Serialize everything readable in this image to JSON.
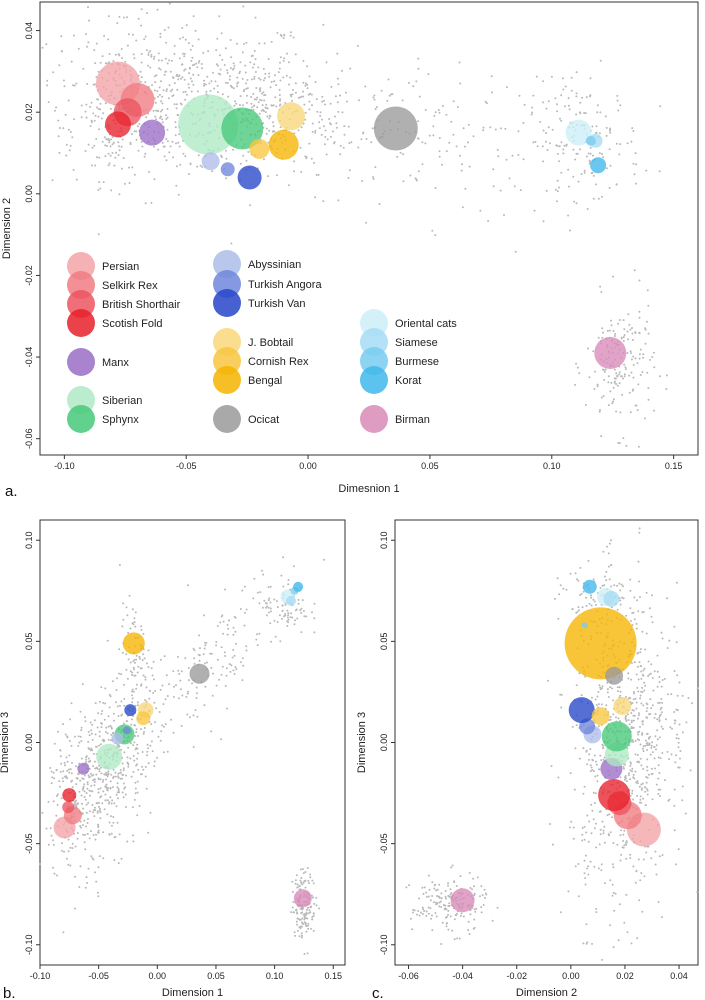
{
  "breeds": [
    {
      "name": "Persian",
      "color": "#f4a3a8"
    },
    {
      "name": "Selkirk Rex",
      "color": "#f07c82"
    },
    {
      "name": "British Shorthair",
      "color": "#ec5560"
    },
    {
      "name": "Scotish Fold",
      "color": "#e8202a"
    },
    {
      "name": "Manx",
      "color": "#9b6dc6"
    },
    {
      "name": "Siberian",
      "color": "#aee9c4"
    },
    {
      "name": "Sphynx",
      "color": "#46c97a"
    },
    {
      "name": "Abyssinian",
      "color": "#aebde9"
    },
    {
      "name": "Turkish Angora",
      "color": "#6f87dc"
    },
    {
      "name": "Turkish Van",
      "color": "#2746c8"
    },
    {
      "name": "J. Bobtail",
      "color": "#f9d77a"
    },
    {
      "name": "Cornish Rex",
      "color": "#f8c640"
    },
    {
      "name": "Bengal",
      "color": "#f6b400"
    },
    {
      "name": "Ocicat",
      "color": "#9a9a9a"
    },
    {
      "name": "Oriental cats",
      "color": "#cdeef9"
    },
    {
      "name": "Siamese",
      "color": "#a6ddf4"
    },
    {
      "name": "Burmese",
      "color": "#78cdf0"
    },
    {
      "name": "Korat",
      "color": "#40b8ec"
    },
    {
      "name": "Birman",
      "color": "#d88bb8"
    }
  ],
  "chart_data": [
    {
      "panel": "a.",
      "type": "scatter",
      "xlabel": "Dimesnion 1",
      "ylabel": "Dimension 2",
      "xlim": [
        -0.11,
        0.16
      ],
      "ylim": [
        -0.064,
        0.047
      ],
      "xticks": [
        "-0.10",
        "-0.05",
        "0.00",
        "0.05",
        "0.10",
        "0.15"
      ],
      "yticks": [
        "-0.06",
        "-0.04",
        "-0.02",
        "0.00",
        "0.02",
        "0.04"
      ],
      "series": [
        {
          "name": "Persian",
          "x": -0.078,
          "y": 0.027,
          "size": 22
        },
        {
          "name": "Selkirk Rex",
          "x": -0.07,
          "y": 0.023,
          "size": 17
        },
        {
          "name": "British Shorthair",
          "x": -0.074,
          "y": 0.02,
          "size": 14
        },
        {
          "name": "Scotish Fold",
          "x": -0.078,
          "y": 0.017,
          "size": 13
        },
        {
          "name": "Manx",
          "x": -0.064,
          "y": 0.015,
          "size": 13
        },
        {
          "name": "Siberian",
          "x": -0.041,
          "y": 0.017,
          "size": 30
        },
        {
          "name": "Sphynx",
          "x": -0.027,
          "y": 0.016,
          "size": 21
        },
        {
          "name": "Abyssinian",
          "x": -0.04,
          "y": 0.008,
          "size": 9
        },
        {
          "name": "Turkish Angora",
          "x": -0.033,
          "y": 0.006,
          "size": 7
        },
        {
          "name": "Turkish Van",
          "x": -0.024,
          "y": 0.004,
          "size": 12
        },
        {
          "name": "J. Bobtail",
          "x": -0.007,
          "y": 0.019,
          "size": 14
        },
        {
          "name": "Cornish Rex",
          "x": -0.02,
          "y": 0.011,
          "size": 10
        },
        {
          "name": "Bengal",
          "x": -0.01,
          "y": 0.012,
          "size": 15
        },
        {
          "name": "Ocicat",
          "x": 0.036,
          "y": 0.016,
          "size": 22
        },
        {
          "name": "Oriental cats",
          "x": 0.111,
          "y": 0.015,
          "size": 13
        },
        {
          "name": "Siamese",
          "x": 0.118,
          "y": 0.013,
          "size": 7
        },
        {
          "name": "Burmese",
          "x": 0.116,
          "y": 0.013,
          "size": 5
        },
        {
          "name": "Korat",
          "x": 0.119,
          "y": 0.007,
          "size": 8
        },
        {
          "name": "Birman",
          "x": 0.124,
          "y": -0.039,
          "size": 16
        }
      ]
    },
    {
      "panel": "b.",
      "type": "scatter",
      "xlabel": "Dimension 1",
      "ylabel": "Dimension 3",
      "xlim": [
        -0.1,
        0.16
      ],
      "ylim": [
        -0.11,
        0.11
      ],
      "xticks": [
        "-0.10",
        "-0.05",
        "0.00",
        "0.05",
        "0.10",
        "0.15"
      ],
      "yticks": [
        "-0.10",
        "-0.05",
        "0.00",
        "0.05",
        "0.10"
      ],
      "series": [
        {
          "name": "Persian",
          "x": -0.079,
          "y": -0.042,
          "size": 11
        },
        {
          "name": "Selkirk Rex",
          "x": -0.072,
          "y": -0.036,
          "size": 9
        },
        {
          "name": "British Shorthair",
          "x": -0.076,
          "y": -0.032,
          "size": 6
        },
        {
          "name": "Scotish Fold",
          "x": -0.075,
          "y": -0.026,
          "size": 7
        },
        {
          "name": "Manx",
          "x": -0.063,
          "y": -0.013,
          "size": 6
        },
        {
          "name": "Siberian",
          "x": -0.041,
          "y": -0.007,
          "size": 13
        },
        {
          "name": "Sphynx",
          "x": -0.028,
          "y": 0.004,
          "size": 10
        },
        {
          "name": "Abyssinian",
          "x": -0.034,
          "y": 0.002,
          "size": 6
        },
        {
          "name": "Turkish Angora",
          "x": -0.026,
          "y": 0.006,
          "size": 4
        },
        {
          "name": "Turkish Van",
          "x": -0.023,
          "y": 0.016,
          "size": 6
        },
        {
          "name": "J. Bobtail",
          "x": -0.01,
          "y": 0.016,
          "size": 8
        },
        {
          "name": "Cornish Rex",
          "x": -0.012,
          "y": 0.012,
          "size": 7
        },
        {
          "name": "Bengal",
          "x": -0.02,
          "y": 0.049,
          "size": 11
        },
        {
          "name": "Ocicat",
          "x": 0.036,
          "y": 0.034,
          "size": 10
        },
        {
          "name": "Oriental cats",
          "x": 0.111,
          "y": 0.072,
          "size": 7
        },
        {
          "name": "Siamese",
          "x": 0.114,
          "y": 0.07,
          "size": 5
        },
        {
          "name": "Burmese",
          "x": 0.117,
          "y": 0.075,
          "size": 4
        },
        {
          "name": "Korat",
          "x": 0.12,
          "y": 0.077,
          "size": 5
        },
        {
          "name": "Birman",
          "x": 0.124,
          "y": -0.077,
          "size": 9
        }
      ]
    },
    {
      "panel": "c.",
      "type": "scatter",
      "xlabel": "Dimension 2",
      "ylabel": "Dimension 3",
      "xlim": [
        -0.065,
        0.047
      ],
      "ylim": [
        -0.11,
        0.11
      ],
      "xticks": [
        "-0.06",
        "-0.04",
        "-0.02",
        "0.00",
        "0.02",
        "0.04"
      ],
      "yticks": [
        "-0.10",
        "-0.05",
        "0.00",
        "0.05",
        "0.10"
      ],
      "series": [
        {
          "name": "Persian",
          "x": 0.027,
          "y": -0.043,
          "size": 17
        },
        {
          "name": "Selkirk Rex",
          "x": 0.021,
          "y": -0.036,
          "size": 14
        },
        {
          "name": "British Shorthair",
          "x": 0.018,
          "y": -0.03,
          "size": 12
        },
        {
          "name": "Scotish Fold",
          "x": 0.016,
          "y": -0.026,
          "size": 16
        },
        {
          "name": "Manx",
          "x": 0.015,
          "y": -0.013,
          "size": 11
        },
        {
          "name": "Siberian",
          "x": 0.017,
          "y": -0.006,
          "size": 12
        },
        {
          "name": "Sphynx",
          "x": 0.017,
          "y": 0.003,
          "size": 15
        },
        {
          "name": "Abyssinian",
          "x": 0.008,
          "y": 0.004,
          "size": 9
        },
        {
          "name": "Turkish Angora",
          "x": 0.006,
          "y": 0.008,
          "size": 8
        },
        {
          "name": "Turkish Van",
          "x": 0.004,
          "y": 0.016,
          "size": 13
        },
        {
          "name": "J. Bobtail",
          "x": 0.019,
          "y": 0.018,
          "size": 9
        },
        {
          "name": "Cornish Rex",
          "x": 0.011,
          "y": 0.013,
          "size": 9
        },
        {
          "name": "Bengal",
          "x": 0.011,
          "y": 0.049,
          "size": 36
        },
        {
          "name": "Ocicat",
          "x": 0.016,
          "y": 0.033,
          "size": 9
        },
        {
          "name": "Oriental cats",
          "x": 0.013,
          "y": 0.072,
          "size": 9
        },
        {
          "name": "Siamese",
          "x": 0.015,
          "y": 0.071,
          "size": 8
        },
        {
          "name": "Burmese",
          "x": 0.005,
          "y": 0.058,
          "size": 3
        },
        {
          "name": "Korat",
          "x": 0.007,
          "y": 0.077,
          "size": 7
        },
        {
          "name": "Birman",
          "x": -0.04,
          "y": -0.078,
          "size": 12
        }
      ]
    }
  ]
}
